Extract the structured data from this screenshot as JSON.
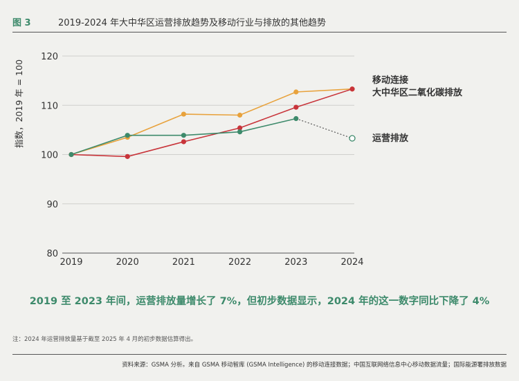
{
  "figure": {
    "label": "图 3",
    "title": "2019-2024 年大中华区运营排放趋势及移动行业与排放的其他趋势"
  },
  "headline": "2019 至 2023 年间，运营排放量增长了 7%，但初步数据显示，2024 年的这一数字同比下降了 4%",
  "note": "注：2024 年运营排放量基于截至 2025 年 4 月的初步数据估算得出。",
  "source": "资料来源：GSMA 分析。来自 GSMA 移动智库 (GSMA Intelligence) 的移动连接数据；中国互联网络信息中心移动数据流量；国际能源署排放数据",
  "colors": {
    "accent": "#3d8a6b",
    "orange": "#e8a23c",
    "red": "#c8343a",
    "green": "#3d8a6b"
  },
  "chart_data": {
    "type": "line",
    "ylabel": "指数，2019 年 = 100",
    "ylim": [
      80,
      120
    ],
    "yticks": [
      80,
      90,
      100,
      110,
      120
    ],
    "x": [
      "2019",
      "2020",
      "2021",
      "2022",
      "2023",
      "2024"
    ],
    "grid": true,
    "series": [
      {
        "name": "移动连接",
        "color": "#e8a23c",
        "values": [
          100,
          103.5,
          108.2,
          108.0,
          112.7,
          113.3
        ]
      },
      {
        "name": "大中华区二氧化碳排放",
        "color": "#c8343a",
        "values": [
          100,
          99.6,
          102.6,
          105.4,
          109.6,
          113.3
        ]
      },
      {
        "name": "运营排放",
        "color": "#3d8a6b",
        "values": [
          100,
          103.9,
          103.9,
          104.6,
          107.3,
          103.3
        ],
        "estimated_last": true
      }
    ]
  }
}
